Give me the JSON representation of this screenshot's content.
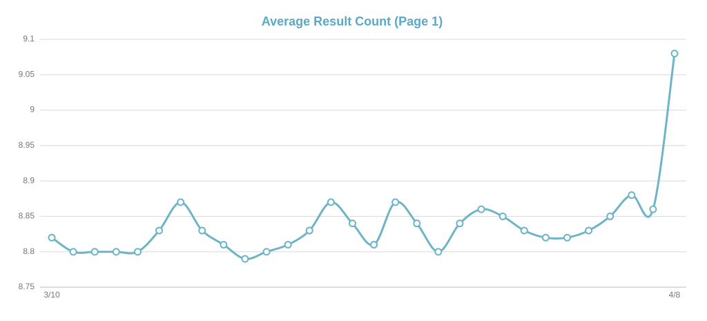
{
  "chart_data": {
    "type": "line",
    "title": "Average Result Count (Page 1)",
    "categories": [
      "3/10",
      null,
      null,
      null,
      null,
      null,
      null,
      null,
      null,
      null,
      null,
      null,
      null,
      null,
      null,
      null,
      null,
      null,
      null,
      null,
      null,
      null,
      null,
      null,
      null,
      null,
      null,
      null,
      null,
      "4/8"
    ],
    "series": [
      {
        "name": "Average Result Count",
        "color": "#6db4c9",
        "values": [
          8.82,
          8.8,
          8.8,
          8.8,
          8.8,
          8.83,
          8.87,
          8.83,
          8.81,
          8.79,
          8.8,
          8.81,
          8.83,
          8.87,
          8.84,
          8.81,
          8.87,
          8.84,
          8.8,
          8.84,
          8.86,
          8.85,
          8.83,
          8.82,
          8.82,
          8.83,
          8.85,
          8.88,
          8.86,
          9.08
        ]
      }
    ],
    "ylim": [
      8.75,
      9.1
    ],
    "yticks": [
      8.75,
      8.8,
      8.85,
      8.9,
      8.95,
      9,
      9.05,
      9.1
    ],
    "grid": true
  }
}
